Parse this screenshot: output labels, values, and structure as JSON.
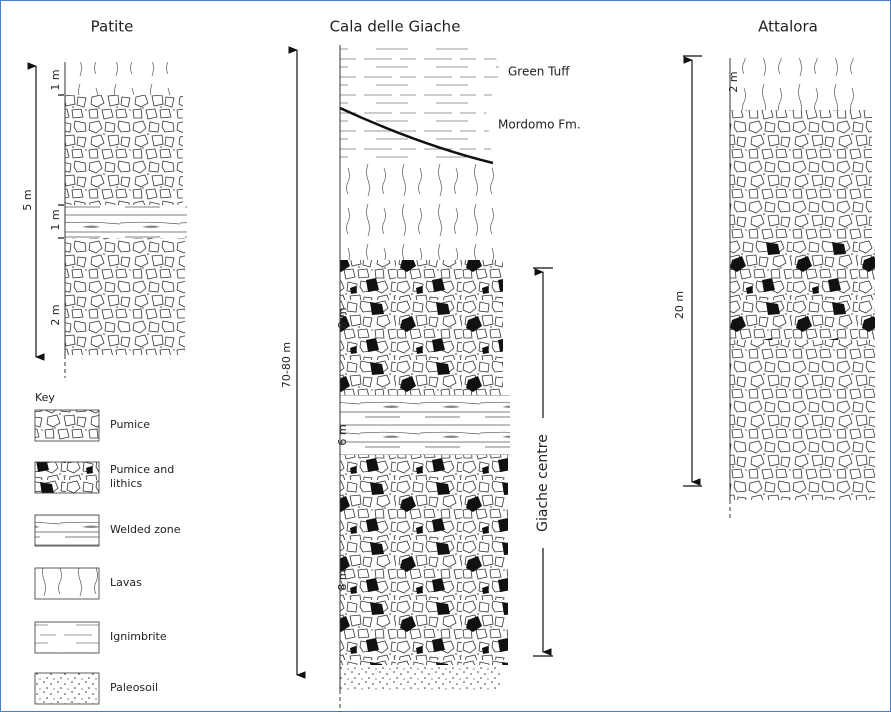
{
  "columns": [
    {
      "title": "Patite",
      "total": "5 m",
      "thicknesses": [
        "1 m",
        "1 m",
        "2 m"
      ]
    },
    {
      "title": "Cala delle Giache",
      "total": "70-80 m",
      "thicknesses": [
        "8 m",
        "6 m",
        "8 m"
      ],
      "units": [
        "Green Tuff",
        "Mordomo Fm."
      ],
      "section": "Giache centre"
    },
    {
      "title": "Attalora",
      "total": "20 m",
      "thicknesses": [
        "2 m"
      ]
    }
  ],
  "key": {
    "title": "Key",
    "items": [
      {
        "label_lines": [
          "Pumice"
        ]
      },
      {
        "label_lines": [
          "Pumice and",
          "lithics"
        ]
      },
      {
        "label_lines": [
          "Welded zone"
        ]
      },
      {
        "label_lines": [
          "Lavas"
        ]
      },
      {
        "label_lines": [
          "Ignimbrite"
        ]
      },
      {
        "label_lines": [
          "Paleosoil"
        ]
      }
    ]
  }
}
